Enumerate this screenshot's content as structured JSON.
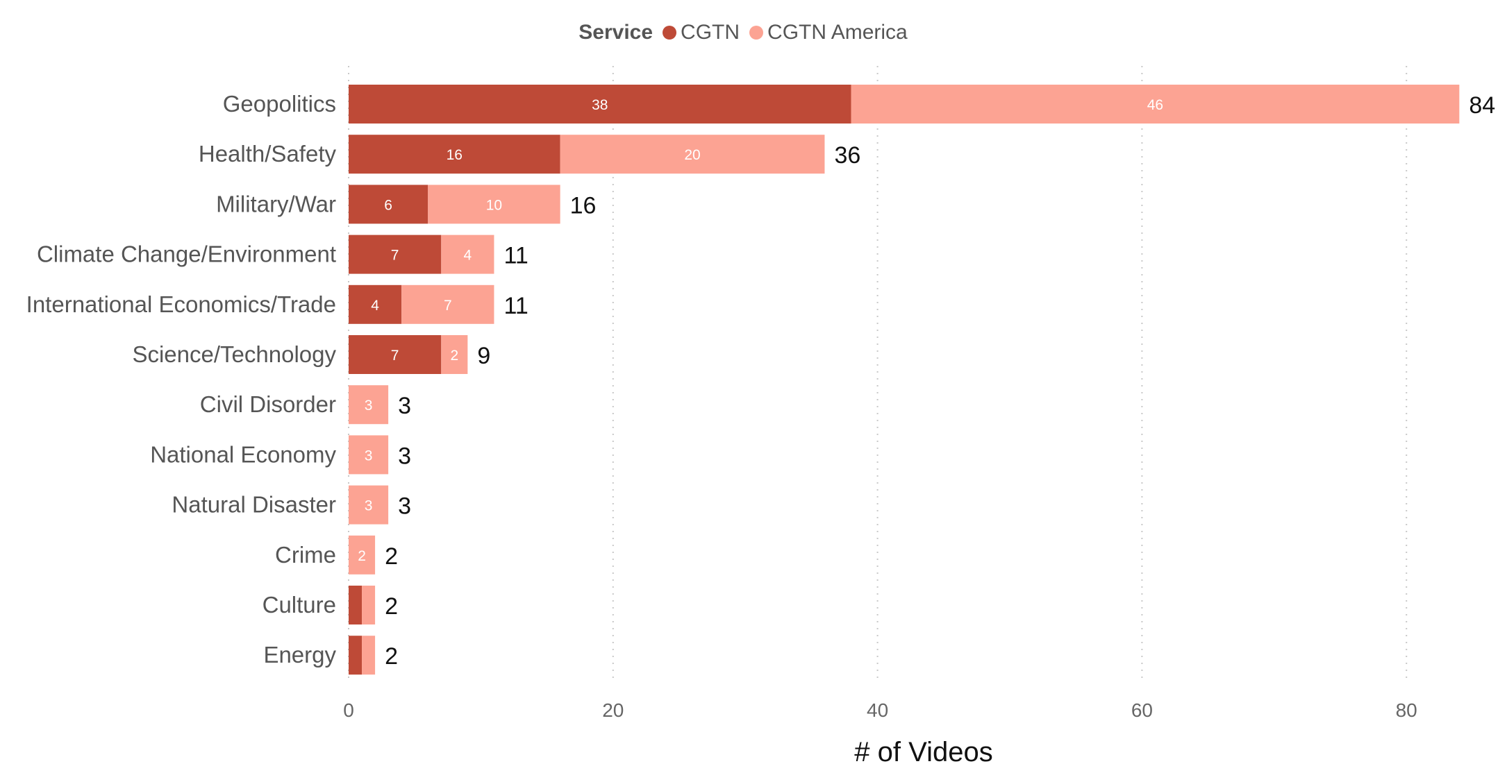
{
  "chart_data": {
    "type": "bar",
    "orientation": "horizontal",
    "stacked": true,
    "legend": {
      "title": "Service",
      "position": "top-center"
    },
    "categories": [
      "Geopolitics",
      "Health/Safety",
      "Military/War",
      "Climate Change/Environment",
      "International Economics/Trade",
      "Science/Technology",
      "Civil Disorder",
      "National Economy",
      "Natural Disaster",
      "Crime",
      "Culture",
      "Energy"
    ],
    "series": [
      {
        "name": "CGTN",
        "color": "#be4a37",
        "values": [
          38,
          16,
          6,
          7,
          4,
          7,
          0,
          0,
          0,
          0,
          1,
          1
        ]
      },
      {
        "name": "CGTN America",
        "color": "#fca393",
        "values": [
          46,
          20,
          10,
          4,
          7,
          2,
          3,
          3,
          3,
          2,
          1,
          1
        ]
      }
    ],
    "segment_labels": [
      [
        "38",
        "46"
      ],
      [
        "16",
        "20"
      ],
      [
        "6",
        "10"
      ],
      [
        "7",
        "4"
      ],
      [
        "4",
        "7"
      ],
      [
        "7",
        "2"
      ],
      [
        "",
        "3"
      ],
      [
        "",
        "3"
      ],
      [
        "",
        "3"
      ],
      [
        "",
        "2"
      ],
      [
        "",
        ""
      ],
      [
        "",
        ""
      ]
    ],
    "totals": [
      84,
      36,
      16,
      11,
      11,
      9,
      3,
      3,
      3,
      2,
      2,
      2
    ],
    "xlabel": "# of Videos",
    "ylabel": "",
    "xlim": [
      0,
      84
    ],
    "xticks": [
      0,
      20,
      40,
      60,
      80
    ],
    "grid": "vertical dotted"
  }
}
